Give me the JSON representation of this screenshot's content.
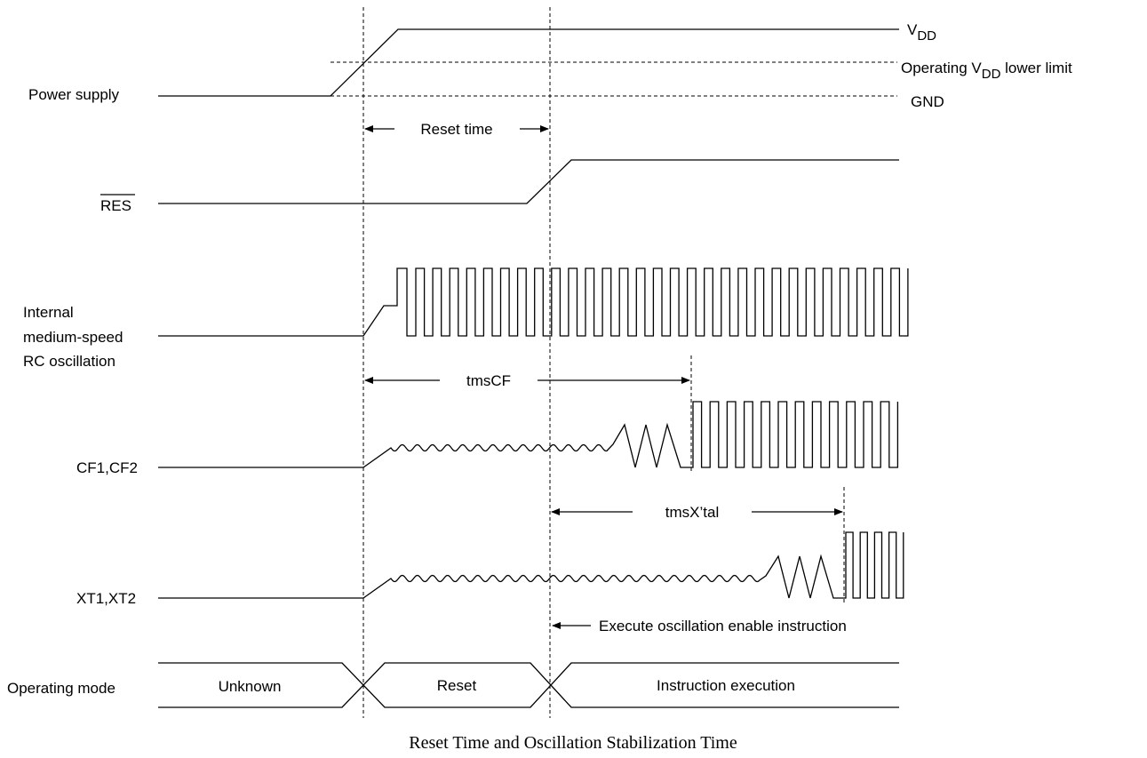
{
  "signals": {
    "power_supply": "Power supply",
    "res": "RES",
    "internal_rc": [
      "Internal",
      "medium-speed",
      "RC oscillation"
    ],
    "cf": "CF1,CF2",
    "xt": "XT1,XT2",
    "operating_mode": "Operating mode"
  },
  "levels": {
    "vdd_prefix": "V",
    "vdd_sub": "DD",
    "lower_limit_prefix": "Operating V",
    "lower_limit_sub": "DD",
    "lower_limit_suffix": " lower limit",
    "gnd": "GND"
  },
  "intervals": {
    "reset_time": "Reset time",
    "tms_cf": "tmsCF",
    "tms_xtal": "tmsX’tal"
  },
  "annotation": "Execute oscillation enable instruction",
  "modes": {
    "unknown": "Unknown",
    "reset": "Reset",
    "instruction": "Instruction execution"
  },
  "caption": "Reset Time and Oscillation Stabilization Time"
}
